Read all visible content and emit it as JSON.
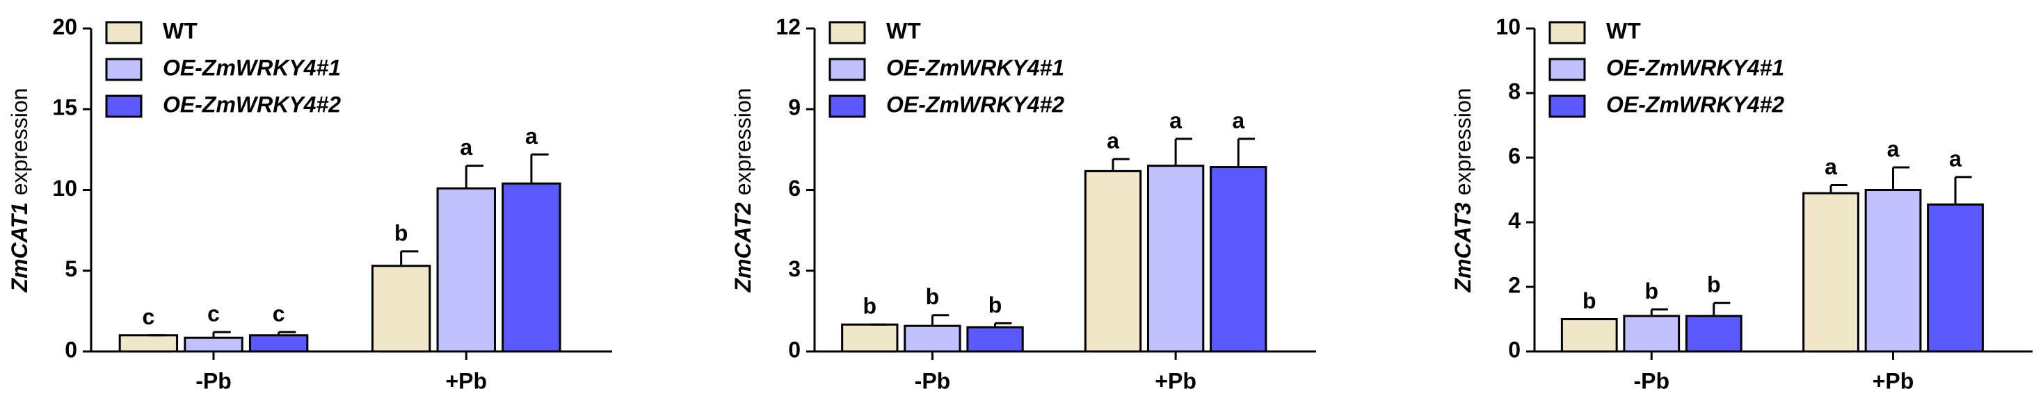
{
  "chart_data": [
    {
      "type": "bar",
      "ylabel_gene": "ZmCAT1",
      "ylabel": "expression",
      "categories": [
        "-Pb",
        "+Pb"
      ],
      "ylim": [
        0,
        20
      ],
      "yticks": [
        0,
        5,
        10,
        15,
        20
      ],
      "series": [
        {
          "name": "WT",
          "color": "#f0e6c8",
          "values": [
            1.0,
            5.3
          ],
          "errors": [
            0,
            0.9
          ],
          "value_labels": [
            "c",
            "b"
          ]
        },
        {
          "name": "OE-ZmWRKY4#1",
          "color": "#c0c0ff",
          "values": [
            0.85,
            10.1
          ],
          "errors": [
            0.35,
            1.4
          ],
          "value_labels": [
            "c",
            "a"
          ]
        },
        {
          "name": "OE-ZmWRKY4#2",
          "color": "#5a5aff",
          "values": [
            1.0,
            10.4
          ],
          "errors": [
            0.2,
            1.8
          ],
          "value_labels": [
            "c",
            "a"
          ]
        }
      ]
    },
    {
      "type": "bar",
      "ylabel_gene": "ZmCAT2",
      "ylabel": "expression",
      "categories": [
        "-Pb",
        "+Pb"
      ],
      "ylim": [
        0,
        12
      ],
      "yticks": [
        0,
        3,
        6,
        9,
        12
      ],
      "series": [
        {
          "name": "WT",
          "color": "#f0e6c8",
          "values": [
            1.0,
            6.7
          ],
          "errors": [
            0,
            0.45
          ],
          "value_labels": [
            "b",
            "a"
          ]
        },
        {
          "name": "OE-ZmWRKY4#1",
          "color": "#c0c0ff",
          "values": [
            0.95,
            6.9
          ],
          "errors": [
            0.4,
            1.0
          ],
          "value_labels": [
            "b",
            "a"
          ]
        },
        {
          "name": "OE-ZmWRKY4#2",
          "color": "#5a5aff",
          "values": [
            0.9,
            6.85
          ],
          "errors": [
            0.15,
            1.05
          ],
          "value_labels": [
            "b",
            "a"
          ]
        }
      ]
    },
    {
      "type": "bar",
      "ylabel_gene": "ZmCAT3",
      "ylabel": "expression",
      "categories": [
        "-Pb",
        "+Pb"
      ],
      "ylim": [
        0,
        10
      ],
      "yticks": [
        0,
        2,
        4,
        6,
        8,
        10
      ],
      "series": [
        {
          "name": "WT",
          "color": "#f0e6c8",
          "values": [
            1.0,
            4.9
          ],
          "errors": [
            0,
            0.25
          ],
          "value_labels": [
            "b",
            "a"
          ]
        },
        {
          "name": "OE-ZmWRKY4#1",
          "color": "#c0c0ff",
          "values": [
            1.1,
            5.0
          ],
          "errors": [
            0.2,
            0.7
          ],
          "value_labels": [
            "b",
            "a"
          ]
        },
        {
          "name": "OE-ZmWRKY4#2",
          "color": "#5a5aff",
          "values": [
            1.1,
            4.55
          ],
          "errors": [
            0.4,
            0.85
          ],
          "value_labels": [
            "b",
            "a"
          ]
        }
      ]
    }
  ]
}
